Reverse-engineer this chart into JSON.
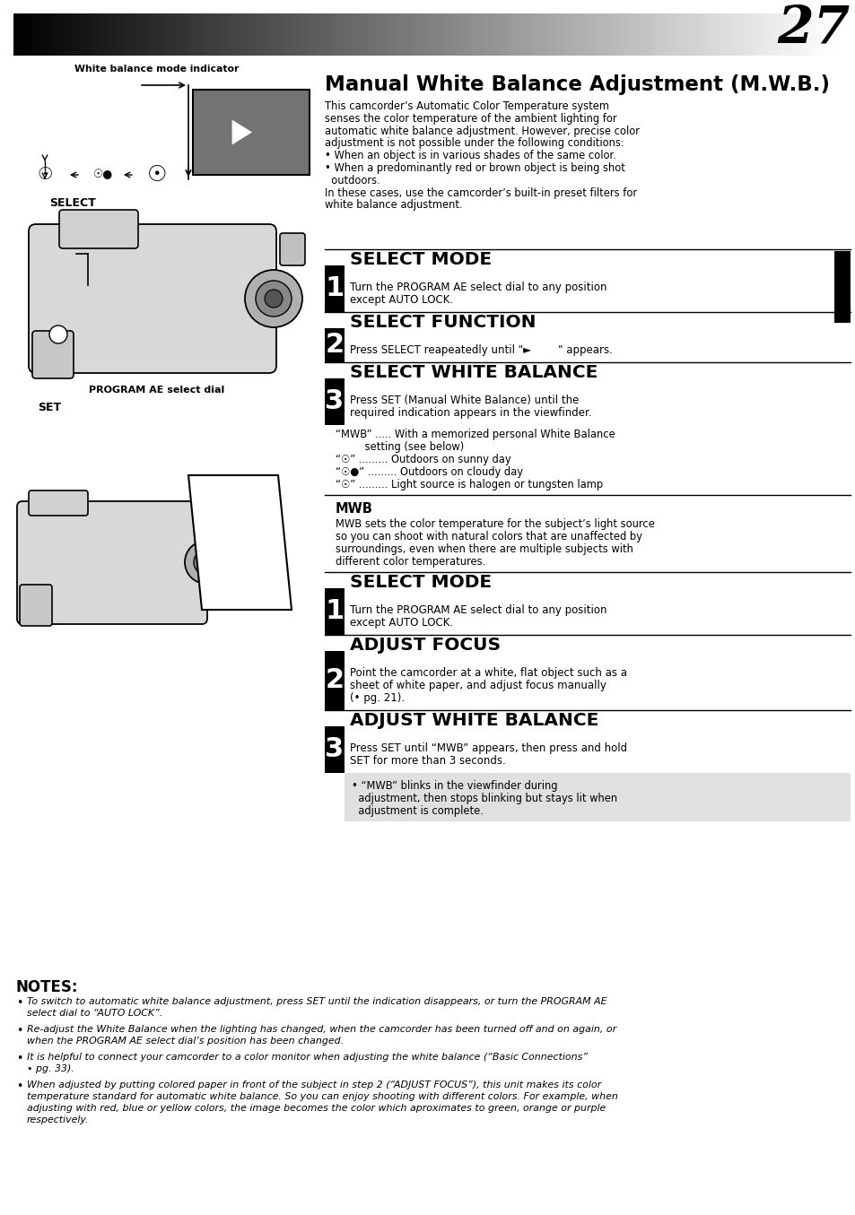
{
  "page_number": "27",
  "bg_color": "#ffffff",
  "title": "Manual White Balance Adjustment (M.W.B.)",
  "intro_lines": [
    "This camcorder’s Automatic Color Temperature system",
    "senses the color temperature of the ambient lighting for",
    "automatic white balance adjustment. However, precise color",
    "adjustment is not possible under the following conditions:",
    "• When an object is in various shades of the same color.",
    "• When a predominantly red or brown object is being shot",
    "  outdoors.",
    "In these cases, use the camcorder’s built-in preset filters for",
    "white balance adjustment."
  ],
  "sections_top": [
    {
      "title": "SELECT MODE",
      "num": "1",
      "body": [
        "Turn the PROGRAM AE select dial to any position",
        "except AUTO LOCK."
      ]
    },
    {
      "title": "SELECT FUNCTION",
      "num": "2",
      "body": [
        "Press SELECT reapeatedly until \"►        \" appears."
      ]
    },
    {
      "title": "SELECT WHITE BALANCE",
      "num": "3",
      "body": [
        "Press SET (Manual White Balance) until the",
        "required indication appears in the viewfinder."
      ]
    }
  ],
  "mwb_list": [
    "“MWB” ..... With a memorized personal White Balance",
    "         setting (see below)",
    "“☉” ......... Outdoors on sunny day",
    "“☉●” ......... Outdoors on cloudy day",
    "“☉” ......... Light source is halogen or tungsten lamp"
  ],
  "mwb_heading": "MWB",
  "mwb_body": [
    "MWB sets the color temperature for the subject’s light source",
    "so you can shoot with natural colors that are unaffected by",
    "surroundings, even when there are multiple subjects with",
    "different color temperatures."
  ],
  "sections_bottom": [
    {
      "title": "SELECT MODE",
      "num": "1",
      "body": [
        "Turn the PROGRAM AE select dial to any position",
        "except AUTO LOCK."
      ]
    },
    {
      "title": "ADJUST FOCUS",
      "num": "2",
      "body": [
        "Point the camcorder at a white, flat object such as a",
        "sheet of white paper, and adjust focus manually",
        "(• pg. 21)."
      ]
    },
    {
      "title": "ADJUST WHITE BALANCE",
      "num": "3",
      "body": [
        "Press SET until “MWB” appears, then press and hold",
        "SET for more than 3 seconds."
      ]
    }
  ],
  "bullet_note": [
    "• “MWB” blinks in the viewfinder during",
    "  adjustment, then stops blinking but stays lit when",
    "  adjustment is complete."
  ],
  "notes_heading": "NOTES:",
  "notes": [
    [
      "To switch to automatic white balance adjustment, press SET until the indication disappears, or turn the PROGRAM AE",
      "select dial to “AUTO LOCK”."
    ],
    [
      "Re-adjust the White Balance when the lighting has changed, when the camcorder has been turned off and on again, or",
      "when the PROGRAM AE select dial’s position has been changed."
    ],
    [
      "It is helpful to connect your camcorder to a color monitor when adjusting the white balance (“Basic Connections”",
      "• pg. 33)."
    ],
    [
      "When adjusted by putting colored paper in front of the subject in step 2 (“ADJUST FOCUS”), this unit makes its color",
      "temperature standard for automatic white balance. So you can enjoy shooting with different colors. For example, when",
      "adjusting with red, blue or yellow colors, the image becomes the color which aproximates to green, orange or purple",
      "respectively."
    ]
  ]
}
